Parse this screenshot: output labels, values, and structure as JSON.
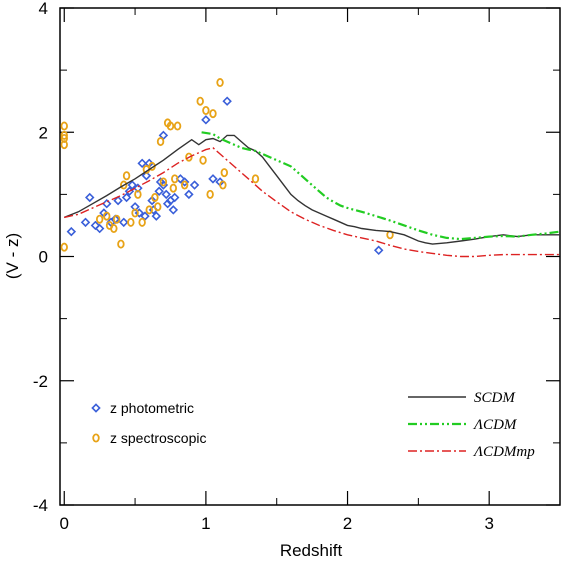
{
  "chart_data": {
    "type": "scatter",
    "xlabel": "Redshift",
    "ylabel": "(V - z)",
    "xlim": [
      -0.03,
      3.5
    ],
    "ylim": [
      -4,
      4
    ],
    "xticks": [
      0,
      1,
      2,
      3
    ],
    "yticks": [
      -4,
      -2,
      0,
      2,
      4
    ],
    "x_tick_labels": [
      "0",
      "1",
      "2",
      "3"
    ],
    "y_tick_labels": [
      "-4",
      "-2",
      "0",
      "2",
      "4"
    ],
    "grid": false,
    "colors": {
      "photometric": "#3a5fd9",
      "spectroscopic": "#e8a317",
      "scdm": "#333333",
      "lcdm": "#22cc22",
      "lcdmmp": "#dd2222"
    },
    "scatter_legend": [
      {
        "key": "photometric",
        "label": "z photometric",
        "marker": "diamond"
      },
      {
        "key": "spectroscopic",
        "label": "z spectroscopic",
        "marker": "circle"
      }
    ],
    "line_legend": [
      {
        "key": "scdm",
        "label": "SCDM",
        "style": "solid"
      },
      {
        "key": "lcdm",
        "label": "ΛCDM",
        "style": "dashdotdot"
      },
      {
        "key": "lcdmmp",
        "label": "ΛCDMmp",
        "style": "dashdot"
      }
    ],
    "series": [
      {
        "key": "photometric",
        "kind": "scatter",
        "points": [
          [
            0.05,
            0.4
          ],
          [
            0.15,
            0.55
          ],
          [
            0.18,
            0.95
          ],
          [
            0.22,
            0.5
          ],
          [
            0.25,
            0.45
          ],
          [
            0.28,
            0.7
          ],
          [
            0.3,
            0.85
          ],
          [
            0.33,
            0.55
          ],
          [
            0.36,
            0.6
          ],
          [
            0.38,
            0.9
          ],
          [
            0.42,
            0.55
          ],
          [
            0.44,
            0.95
          ],
          [
            0.46,
            1.05
          ],
          [
            0.48,
            1.15
          ],
          [
            0.5,
            0.8
          ],
          [
            0.52,
            1.1
          ],
          [
            0.53,
            0.7
          ],
          [
            0.55,
            1.5
          ],
          [
            0.57,
            0.65
          ],
          [
            0.58,
            1.3
          ],
          [
            0.6,
            1.5
          ],
          [
            0.62,
            0.9
          ],
          [
            0.63,
            0.75
          ],
          [
            0.65,
            0.65
          ],
          [
            0.67,
            1.05
          ],
          [
            0.68,
            1.2
          ],
          [
            0.7,
            1.15
          ],
          [
            0.72,
            1.0
          ],
          [
            0.73,
            0.85
          ],
          [
            0.75,
            0.9
          ],
          [
            0.77,
            0.75
          ],
          [
            0.78,
            0.95
          ],
          [
            0.82,
            1.25
          ],
          [
            0.85,
            1.2
          ],
          [
            0.88,
            1.0
          ],
          [
            0.92,
            1.15
          ],
          [
            1.0,
            2.2
          ],
          [
            1.05,
            1.25
          ],
          [
            1.1,
            1.2
          ],
          [
            1.15,
            2.5
          ],
          [
            2.22,
            0.1
          ],
          [
            0.7,
            1.95
          ]
        ]
      },
      {
        "key": "spectroscopic",
        "kind": "scatter",
        "points": [
          [
            0.0,
            2.1
          ],
          [
            0.0,
            1.9
          ],
          [
            0.0,
            1.8
          ],
          [
            0.0,
            1.95
          ],
          [
            0.0,
            0.15
          ],
          [
            0.25,
            0.6
          ],
          [
            0.3,
            0.65
          ],
          [
            0.32,
            0.5
          ],
          [
            0.35,
            0.45
          ],
          [
            0.37,
            0.6
          ],
          [
            0.4,
            0.2
          ],
          [
            0.42,
            1.15
          ],
          [
            0.44,
            1.3
          ],
          [
            0.47,
            0.55
          ],
          [
            0.5,
            0.7
          ],
          [
            0.52,
            1.0
          ],
          [
            0.55,
            0.55
          ],
          [
            0.58,
            1.4
          ],
          [
            0.6,
            0.75
          ],
          [
            0.62,
            1.45
          ],
          [
            0.64,
            0.95
          ],
          [
            0.66,
            0.8
          ],
          [
            0.68,
            1.85
          ],
          [
            0.7,
            1.2
          ],
          [
            0.73,
            2.15
          ],
          [
            0.75,
            2.1
          ],
          [
            0.77,
            1.1
          ],
          [
            0.78,
            1.25
          ],
          [
            0.8,
            2.1
          ],
          [
            0.85,
            1.15
          ],
          [
            0.88,
            1.6
          ],
          [
            0.96,
            2.5
          ],
          [
            0.98,
            1.55
          ],
          [
            1.0,
            2.35
          ],
          [
            1.03,
            1.0
          ],
          [
            1.05,
            2.3
          ],
          [
            1.1,
            2.8
          ],
          [
            1.12,
            1.15
          ],
          [
            1.13,
            1.35
          ],
          [
            1.35,
            1.25
          ],
          [
            2.3,
            0.35
          ]
        ]
      },
      {
        "key": "scdm",
        "kind": "line",
        "points": [
          [
            0.0,
            0.63
          ],
          [
            0.1,
            0.72
          ],
          [
            0.2,
            0.85
          ],
          [
            0.3,
            0.98
          ],
          [
            0.4,
            1.12
          ],
          [
            0.5,
            1.25
          ],
          [
            0.6,
            1.4
          ],
          [
            0.7,
            1.55
          ],
          [
            0.8,
            1.72
          ],
          [
            0.9,
            1.88
          ],
          [
            0.95,
            1.8
          ],
          [
            1.0,
            1.88
          ],
          [
            1.05,
            1.9
          ],
          [
            1.1,
            1.85
          ],
          [
            1.15,
            1.95
          ],
          [
            1.2,
            1.95
          ],
          [
            1.25,
            1.85
          ],
          [
            1.3,
            1.75
          ],
          [
            1.35,
            1.7
          ],
          [
            1.4,
            1.6
          ],
          [
            1.45,
            1.45
          ],
          [
            1.5,
            1.3
          ],
          [
            1.55,
            1.15
          ],
          [
            1.6,
            1.0
          ],
          [
            1.65,
            0.9
          ],
          [
            1.7,
            0.82
          ],
          [
            1.75,
            0.75
          ],
          [
            1.8,
            0.7
          ],
          [
            1.85,
            0.65
          ],
          [
            1.9,
            0.6
          ],
          [
            1.95,
            0.55
          ],
          [
            2.0,
            0.5
          ],
          [
            2.05,
            0.48
          ],
          [
            2.1,
            0.45
          ],
          [
            2.2,
            0.42
          ],
          [
            2.3,
            0.4
          ],
          [
            2.4,
            0.35
          ],
          [
            2.45,
            0.3
          ],
          [
            2.5,
            0.25
          ],
          [
            2.55,
            0.22
          ],
          [
            2.6,
            0.2
          ],
          [
            2.7,
            0.22
          ],
          [
            2.8,
            0.25
          ],
          [
            2.9,
            0.28
          ],
          [
            3.0,
            0.32
          ],
          [
            3.1,
            0.35
          ],
          [
            3.2,
            0.32
          ],
          [
            3.3,
            0.35
          ],
          [
            3.4,
            0.35
          ],
          [
            3.5,
            0.35
          ]
        ]
      },
      {
        "key": "lcdm",
        "kind": "line",
        "points": [
          [
            0.97,
            2.0
          ],
          [
            1.05,
            1.97
          ],
          [
            1.1,
            1.9
          ],
          [
            1.15,
            1.85
          ],
          [
            1.2,
            1.8
          ],
          [
            1.25,
            1.75
          ],
          [
            1.3,
            1.72
          ],
          [
            1.35,
            1.7
          ],
          [
            1.4,
            1.65
          ],
          [
            1.45,
            1.6
          ],
          [
            1.5,
            1.55
          ],
          [
            1.55,
            1.5
          ],
          [
            1.6,
            1.45
          ],
          [
            1.65,
            1.35
          ],
          [
            1.7,
            1.25
          ],
          [
            1.75,
            1.15
          ],
          [
            1.8,
            1.05
          ],
          [
            1.85,
            0.95
          ],
          [
            1.9,
            0.88
          ],
          [
            1.95,
            0.82
          ],
          [
            2.0,
            0.78
          ],
          [
            2.1,
            0.72
          ],
          [
            2.2,
            0.65
          ],
          [
            2.3,
            0.58
          ],
          [
            2.4,
            0.5
          ],
          [
            2.5,
            0.42
          ],
          [
            2.6,
            0.35
          ],
          [
            2.7,
            0.3
          ],
          [
            2.8,
            0.28
          ],
          [
            2.9,
            0.3
          ],
          [
            3.0,
            0.32
          ],
          [
            3.1,
            0.33
          ],
          [
            3.2,
            0.32
          ],
          [
            3.3,
            0.35
          ],
          [
            3.4,
            0.37
          ],
          [
            3.5,
            0.4
          ]
        ]
      },
      {
        "key": "lcdmmp",
        "kind": "line",
        "points": [
          [
            0.0,
            0.63
          ],
          [
            0.1,
            0.68
          ],
          [
            0.2,
            0.78
          ],
          [
            0.3,
            0.88
          ],
          [
            0.4,
            0.98
          ],
          [
            0.5,
            1.1
          ],
          [
            0.6,
            1.22
          ],
          [
            0.7,
            1.35
          ],
          [
            0.8,
            1.5
          ],
          [
            0.9,
            1.62
          ],
          [
            1.0,
            1.72
          ],
          [
            1.05,
            1.75
          ],
          [
            1.1,
            1.65
          ],
          [
            1.15,
            1.55
          ],
          [
            1.2,
            1.45
          ],
          [
            1.3,
            1.25
          ],
          [
            1.4,
            1.05
          ],
          [
            1.5,
            0.88
          ],
          [
            1.6,
            0.72
          ],
          [
            1.7,
            0.6
          ],
          [
            1.8,
            0.5
          ],
          [
            1.9,
            0.42
          ],
          [
            2.0,
            0.35
          ],
          [
            2.1,
            0.3
          ],
          [
            2.2,
            0.25
          ],
          [
            2.3,
            0.18
          ],
          [
            2.4,
            0.12
          ],
          [
            2.5,
            0.08
          ],
          [
            2.6,
            0.05
          ],
          [
            2.7,
            0.02
          ],
          [
            2.8,
            0.0
          ],
          [
            2.9,
            0.0
          ],
          [
            3.0,
            0.02
          ],
          [
            3.1,
            0.03
          ],
          [
            3.2,
            0.03
          ],
          [
            3.3,
            0.03
          ],
          [
            3.4,
            0.03
          ],
          [
            3.5,
            0.03
          ]
        ]
      }
    ]
  }
}
